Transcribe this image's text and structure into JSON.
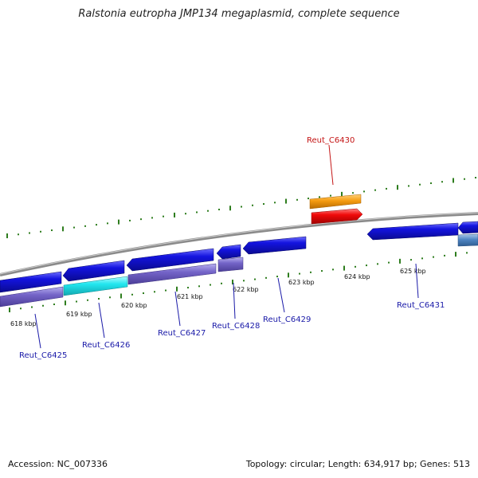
{
  "title": "Ralstonia eutropha JMP134 megaplasmid, complete sequence",
  "footer": {
    "accession": "Accession: NC_007336",
    "summary": "Topology: circular; Length: 634,917 bp; Genes: 513"
  },
  "colors": {
    "backbone": "#8a8a8a",
    "tick": "#2e7d1e",
    "gene_blue": "#1414e0",
    "gene_cyan": "#22e6ef",
    "gene_purple": "#7464c8",
    "gene_orange": "#f59b10",
    "gene_red": "#f00a0a",
    "gene_steel": "#4f85c2",
    "label_blue": "#1a1aa8",
    "label_red": "#c41414"
  },
  "tick_labels": [
    "618 kbp",
    "619 kbp",
    "620 kbp",
    "621 kbp",
    "622 kbp",
    "623 kbp",
    "624 kbp",
    "625 kbp"
  ],
  "gene_labels": [
    "Reut_C6425",
    "Reut_C6426",
    "Reut_C6427",
    "Reut_C6428",
    "Reut_C6429",
    "Reut_C6430",
    "Reut_C6431"
  ]
}
